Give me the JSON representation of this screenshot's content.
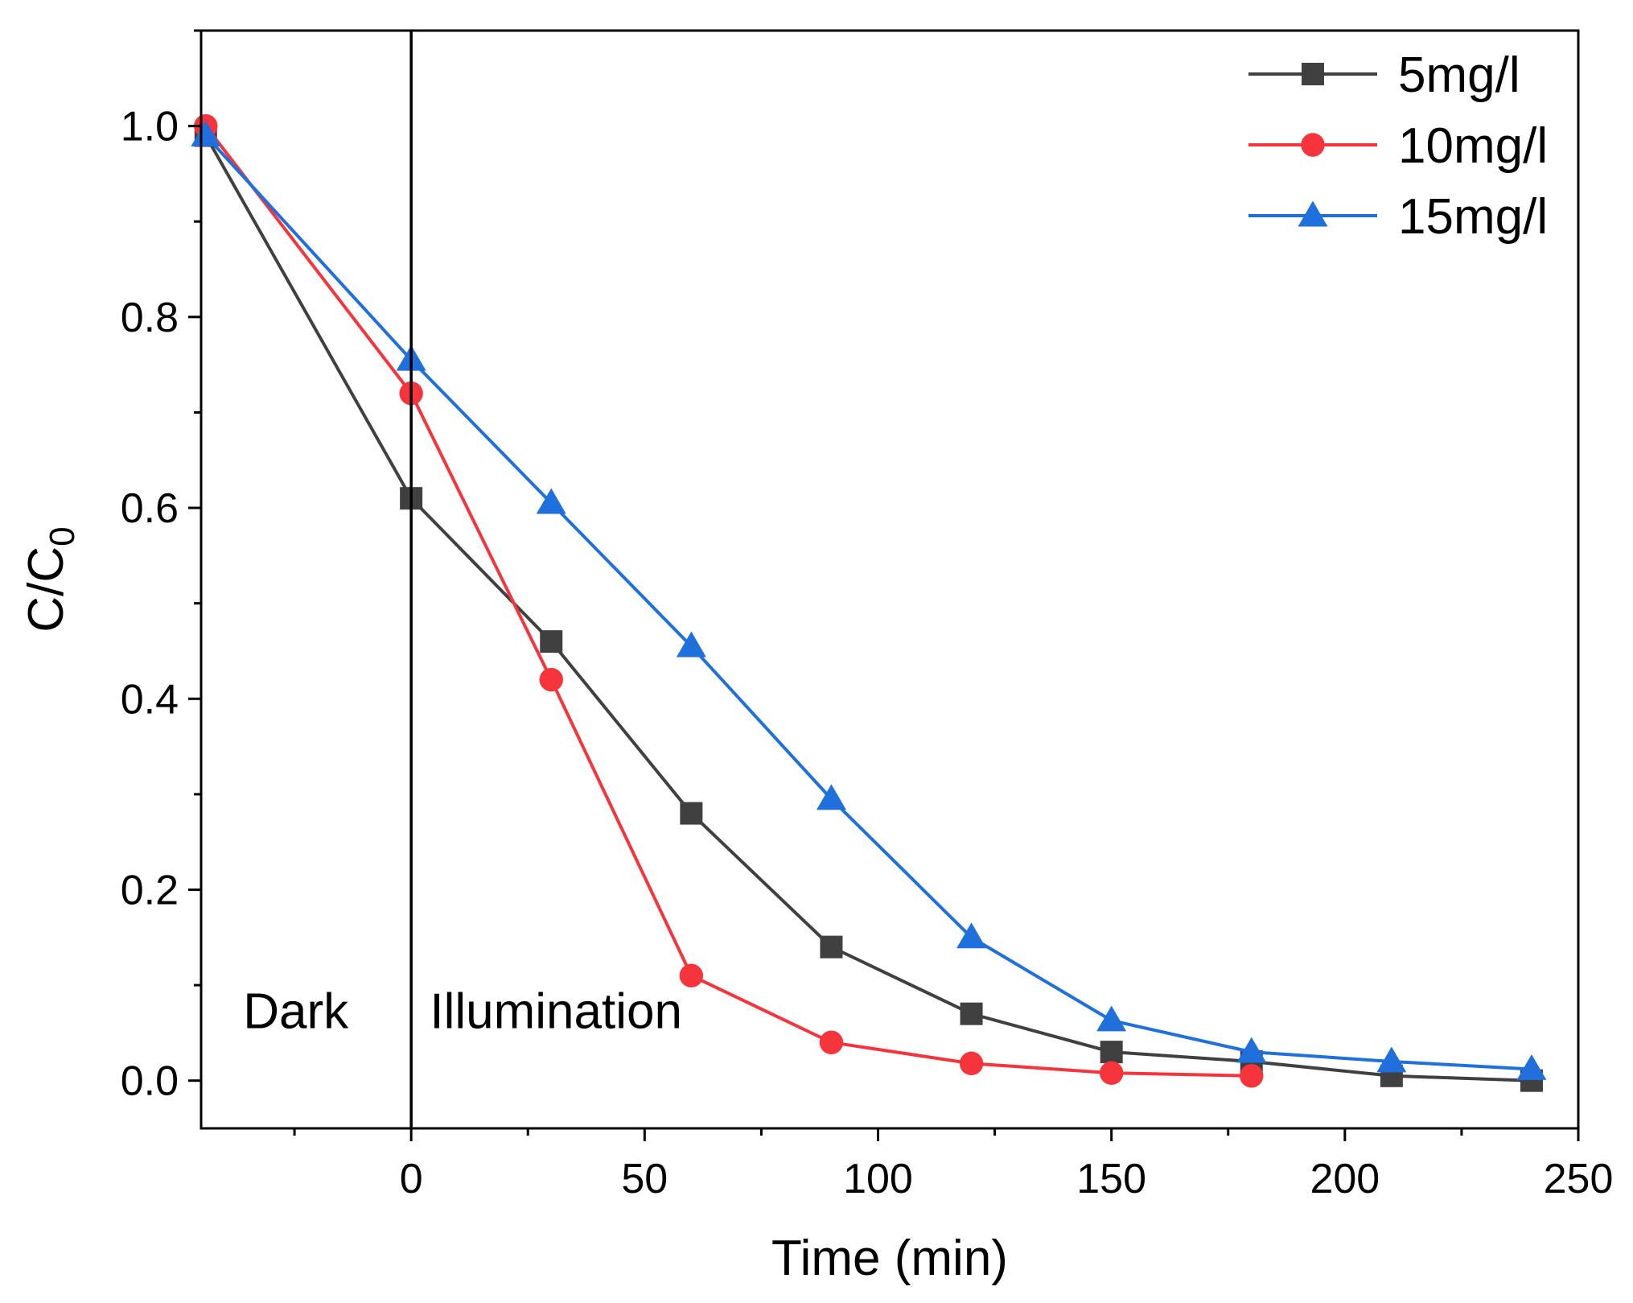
{
  "chart_data": {
    "type": "line",
    "title": "",
    "xlabel": "Time (min)",
    "ylabel": "C/C",
    "ylabel_subscript": "0",
    "xlim": [
      -45,
      250
    ],
    "ylim": [
      -0.05,
      1.1
    ],
    "xticks": [
      0,
      50,
      100,
      150,
      200,
      250
    ],
    "xtick_labels": [
      "0",
      "50",
      "100",
      "150",
      "200",
      "250"
    ],
    "yticks": [
      0.0,
      0.2,
      0.4,
      0.6,
      0.8,
      1.0
    ],
    "ytick_labels": [
      "0.0",
      "0.2",
      "0.4",
      "0.6",
      "0.8",
      "1.0"
    ],
    "grid": false,
    "legend_position": "top-right",
    "divider_x": 0,
    "annotations": [
      {
        "text": "Dark",
        "x": -36,
        "y": 0.055
      },
      {
        "text": "Illumination",
        "x": 4,
        "y": 0.055
      }
    ],
    "series": [
      {
        "name": "5mg/l",
        "color": "#404040",
        "marker": "square",
        "x": [
          -44,
          0,
          30,
          60,
          90,
          120,
          150,
          180,
          210,
          240
        ],
        "y": [
          0.99,
          0.61,
          0.46,
          0.28,
          0.14,
          0.07,
          0.03,
          0.02,
          0.005,
          0.0
        ]
      },
      {
        "name": "10mg/l",
        "color": "#f5343c",
        "marker": "circle",
        "x": [
          -44,
          0,
          30,
          60,
          90,
          120,
          150,
          180
        ],
        "y": [
          1.0,
          0.72,
          0.42,
          0.11,
          0.04,
          0.018,
          0.008,
          0.005
        ]
      },
      {
        "name": "15mg/l",
        "color": "#1f6fdc",
        "marker": "triangle",
        "x": [
          -44,
          0,
          30,
          60,
          90,
          120,
          150,
          180,
          210,
          240
        ],
        "y": [
          0.99,
          0.755,
          0.605,
          0.455,
          0.295,
          0.15,
          0.063,
          0.03,
          0.02,
          0.012
        ]
      }
    ]
  }
}
